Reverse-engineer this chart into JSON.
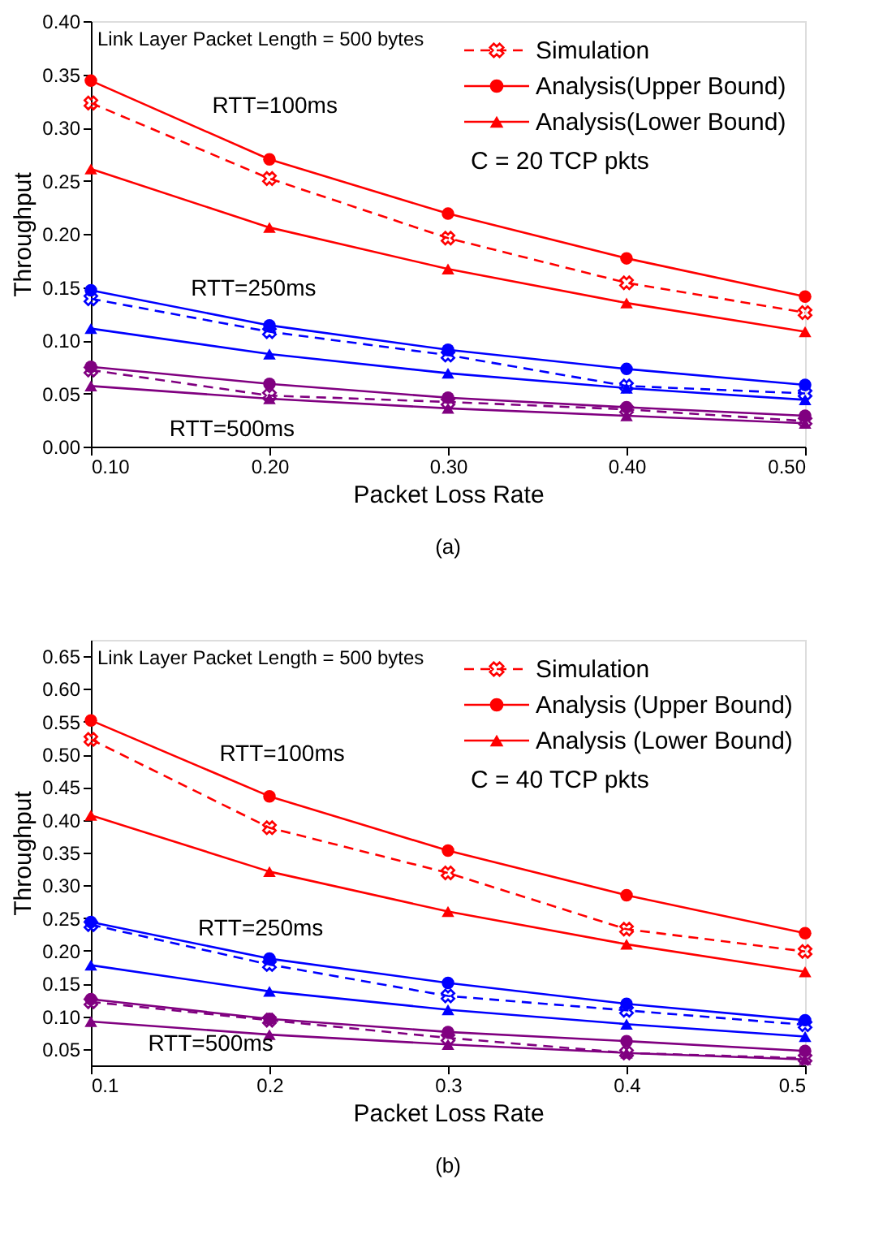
{
  "chart_data": [
    {
      "type": "line",
      "xlabel": "Packet Loss Rate",
      "ylabel": "Throughput",
      "x": [
        0.1,
        0.2,
        0.3,
        0.4,
        0.5
      ],
      "xlim": [
        0.1,
        0.5
      ],
      "xticks": [
        {
          "value": 0.1,
          "label": "0.10"
        },
        {
          "value": 0.2,
          "label": "0.20"
        },
        {
          "value": 0.3,
          "label": "0.30"
        },
        {
          "value": 0.4,
          "label": "0.40"
        },
        {
          "value": 0.5,
          "label": "0.50"
        }
      ],
      "ylim": [
        0,
        0.4
      ],
      "yticks": [
        {
          "value": 0,
          "label": "0.00"
        },
        0.05,
        {
          "value": 0.1,
          "label": "0.10"
        },
        0.15,
        {
          "value": 0.2,
          "label": "0.20"
        },
        0.25,
        {
          "value": 0.3,
          "label": "0.30"
        },
        0.35,
        {
          "value": 0.4,
          "label": "0.40"
        }
      ],
      "grid": false,
      "legend": "top right",
      "series": [
        {
          "name": "Simulation",
          "color": "#ff0000",
          "marker": "cross",
          "line_style": "dashed",
          "values": [
            0.323,
            0.252,
            0.196,
            0.154,
            0.126
          ]
        },
        {
          "name": "Analysis(Upper Bound)",
          "color": "#ff0000",
          "marker": "circle",
          "line_style": "solid",
          "values": [
            0.344,
            0.27,
            0.219,
            0.177,
            0.141
          ]
        },
        {
          "name": "Analysis(Lower Bound)",
          "color": "#ff0000",
          "marker": "triangle",
          "line_style": "solid",
          "values": [
            0.261,
            0.206,
            0.167,
            0.135,
            0.108
          ]
        },
        {
          "color": "#0000ff",
          "marker": "cross",
          "line_style": "dashed",
          "values": [
            0.139,
            0.108,
            0.086,
            0.057,
            0.05
          ]
        },
        {
          "color": "#0000ff",
          "marker": "circle",
          "line_style": "solid",
          "values": [
            0.147,
            0.114,
            0.091,
            0.073,
            0.058
          ]
        },
        {
          "color": "#0000ff",
          "marker": "triangle",
          "line_style": "solid",
          "values": [
            0.111,
            0.087,
            0.069,
            0.055,
            0.044
          ]
        },
        {
          "color": "#800080",
          "marker": "cross",
          "line_style": "dashed",
          "values": [
            0.072,
            0.048,
            0.042,
            0.035,
            0.024
          ]
        },
        {
          "color": "#800080",
          "marker": "circle",
          "line_style": "solid",
          "values": [
            0.075,
            0.059,
            0.046,
            0.037,
            0.029
          ]
        },
        {
          "color": "#800080",
          "marker": "triangle",
          "line_style": "solid",
          "values": [
            0.057,
            0.045,
            0.036,
            0.029,
            0.022
          ]
        }
      ],
      "annotations": [
        "Link Layer Packet Length = 500 bytes",
        "C = 20 TCP pkts",
        "(a)",
        "RTT=100ms",
        "RTT=250ms",
        "RTT=500ms"
      ]
    },
    {
      "type": "line",
      "xlabel": "Packet Loss Rate",
      "ylabel": "Throughput",
      "x": [
        0.1,
        0.2,
        0.3,
        0.4,
        0.5
      ],
      "xlim": [
        0.1,
        0.5
      ],
      "xticks": [
        {
          "value": 0.1,
          "label": "0.1"
        },
        {
          "value": 0.2,
          "label": "0.2"
        },
        {
          "value": 0.3,
          "label": "0.3"
        },
        {
          "value": 0.4,
          "label": "0.4"
        },
        {
          "value": 0.5,
          "label": "0.5"
        }
      ],
      "ylim": [
        0.025,
        0.675
      ],
      "yticks": [
        0.05,
        {
          "value": 0.1,
          "label": "0.10"
        },
        0.15,
        {
          "value": 0.2,
          "label": "0.20"
        },
        0.25,
        {
          "value": 0.3,
          "label": "0.30"
        },
        0.35,
        {
          "value": 0.4,
          "label": "0.40"
        },
        0.45,
        {
          "value": 0.5,
          "label": "0.50"
        },
        0.55,
        {
          "value": 0.6,
          "label": "0.60"
        },
        0.65
      ],
      "grid": false,
      "legend": "top right",
      "series": [
        {
          "name": "Simulation",
          "color": "#ff0000",
          "marker": "cross",
          "line_style": "dashed",
          "values": [
            0.523,
            0.388,
            0.319,
            0.233,
            0.199
          ]
        },
        {
          "name": "Analysis (Upper Bound)",
          "color": "#ff0000",
          "marker": "circle",
          "line_style": "solid",
          "values": [
            0.552,
            0.436,
            0.353,
            0.285,
            0.227
          ]
        },
        {
          "name": "Analysis (Lower Bound)",
          "color": "#ff0000",
          "marker": "triangle",
          "line_style": "solid",
          "values": [
            0.407,
            0.321,
            0.26,
            0.21,
            0.168
          ]
        },
        {
          "color": "#0000ff",
          "marker": "cross",
          "line_style": "dashed",
          "values": [
            0.24,
            0.179,
            0.131,
            0.109,
            0.087
          ]
        },
        {
          "color": "#0000ff",
          "marker": "circle",
          "line_style": "solid",
          "values": [
            0.244,
            0.188,
            0.151,
            0.119,
            0.094
          ]
        },
        {
          "color": "#0000ff",
          "marker": "triangle",
          "line_style": "solid",
          "values": [
            0.178,
            0.138,
            0.11,
            0.088,
            0.069
          ]
        },
        {
          "color": "#800080",
          "marker": "cross",
          "line_style": "dashed",
          "values": [
            0.122,
            0.094,
            0.067,
            0.044,
            0.036
          ]
        },
        {
          "color": "#800080",
          "marker": "circle",
          "line_style": "solid",
          "values": [
            0.126,
            0.096,
            0.076,
            0.062,
            0.047
          ]
        },
        {
          "color": "#800080",
          "marker": "triangle",
          "line_style": "solid",
          "values": [
            0.092,
            0.072,
            0.057,
            0.044,
            0.034
          ]
        }
      ],
      "annotations": [
        "Link Layer Packet Length = 500 bytes",
        "C = 40 TCP pkts",
        "(b)",
        "RTT=100ms",
        "RTT=250ms",
        "RTT=500ms"
      ]
    }
  ]
}
